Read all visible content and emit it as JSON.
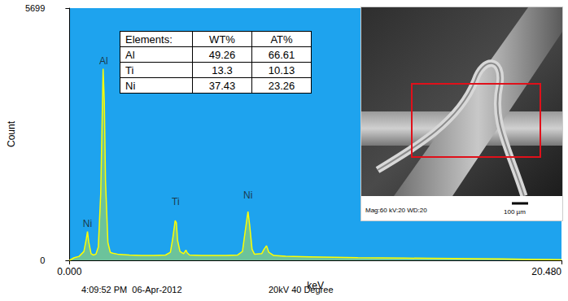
{
  "chart_data": {
    "type": "line",
    "color": "#ffff00",
    "x_label": "keV",
    "y_label": "Count",
    "xlim": [
      0,
      20.48
    ],
    "xticks": [
      {
        "value": 0,
        "label": "0.000"
      },
      {
        "value": 20.48,
        "label": "20.480"
      }
    ],
    "ylim": [
      0,
      5699
    ],
    "yticks": [
      0,
      5699
    ],
    "grid": false,
    "x": [
      0,
      0.2,
      0.4,
      0.6,
      0.7,
      0.75,
      0.8,
      0.9,
      1.0,
      1.1,
      1.2,
      1.3,
      1.4,
      1.45,
      1.5,
      1.6,
      1.7,
      1.8,
      2.0,
      2.5,
      3.0,
      3.5,
      4.0,
      4.2,
      4.3,
      4.4,
      4.45,
      4.5,
      4.6,
      4.75,
      4.85,
      4.9,
      5.0,
      5.5,
      6.0,
      6.5,
      7.0,
      7.2,
      7.3,
      7.43,
      7.5,
      7.6,
      7.7,
      8.0,
      8.1,
      8.2,
      8.3,
      8.5,
      9.0,
      10,
      11,
      12,
      13,
      14,
      15,
      16,
      17,
      18,
      19,
      20,
      20.48
    ],
    "values": [
      0,
      60,
      90,
      200,
      480,
      650,
      420,
      150,
      120,
      140,
      300,
      1500,
      4330,
      3600,
      1800,
      400,
      180,
      160,
      140,
      120,
      110,
      110,
      120,
      180,
      500,
      900,
      850,
      450,
      200,
      150,
      230,
      170,
      120,
      110,
      110,
      110,
      120,
      200,
      600,
      1100,
      800,
      250,
      140,
      150,
      250,
      330,
      180,
      110,
      90,
      80,
      70,
      60,
      55,
      50,
      45,
      40,
      35,
      30,
      25,
      20,
      15
    ],
    "annotations": [
      {
        "text": "Ni",
        "x": 0.75,
        "y": 820
      },
      {
        "text": "Al",
        "x": 1.42,
        "y": 4500
      },
      {
        "text": "Ti",
        "x": 4.42,
        "y": 1320
      },
      {
        "text": "Ni",
        "x": 7.43,
        "y": 1470
      }
    ],
    "footer": [
      "4:09:52 PM  06-Apr-2012",
      "20kV 40 Degree"
    ],
    "table": {
      "header": [
        "Elements:",
        "WT%",
        "AT%"
      ],
      "rows": [
        [
          "Al",
          49.26,
          66.61
        ],
        [
          "Ti",
          13.3,
          10.13
        ],
        [
          "Ni",
          37.43,
          23.26
        ]
      ]
    },
    "inset": {
      "caption": "Mag:60  kV:20  WD:20",
      "scale_bar": "100 µm"
    }
  }
}
